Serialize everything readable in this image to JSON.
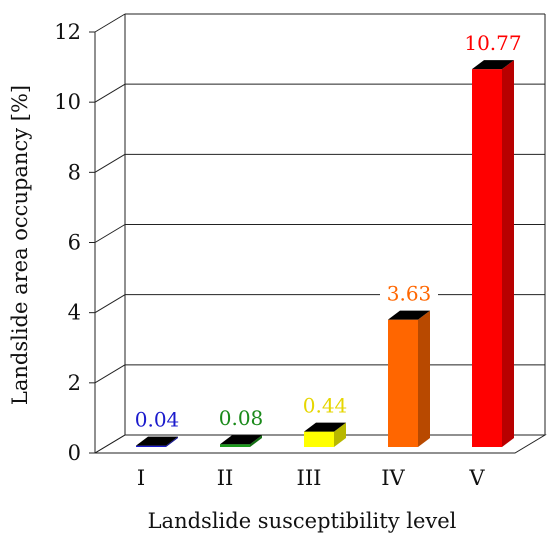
{
  "chart_data": {
    "type": "bar",
    "title": "",
    "xlabel": "Landslide susceptibility level",
    "ylabel": "Landslide area occupancy [%]",
    "categories": [
      "I",
      "II",
      "III",
      "IV",
      "V"
    ],
    "values": [
      0.04,
      0.08,
      0.44,
      3.63,
      10.77
    ],
    "value_labels": [
      "0.04",
      "0.08",
      "0.44",
      "3.63",
      "10.77"
    ],
    "ylim": [
      0,
      12
    ],
    "yticks": [
      "0",
      "2",
      "4",
      "6",
      "8",
      "10",
      "12"
    ],
    "grid": true,
    "legend": "none",
    "colors": [
      "#1a1acc",
      "#1a9a1a",
      "#ffff00",
      "#ff6600",
      "#ff0000"
    ],
    "label_colors": [
      "#1a1acc",
      "#1a8a1a",
      "#e6d600",
      "#ff6600",
      "#ff0000"
    ]
  }
}
